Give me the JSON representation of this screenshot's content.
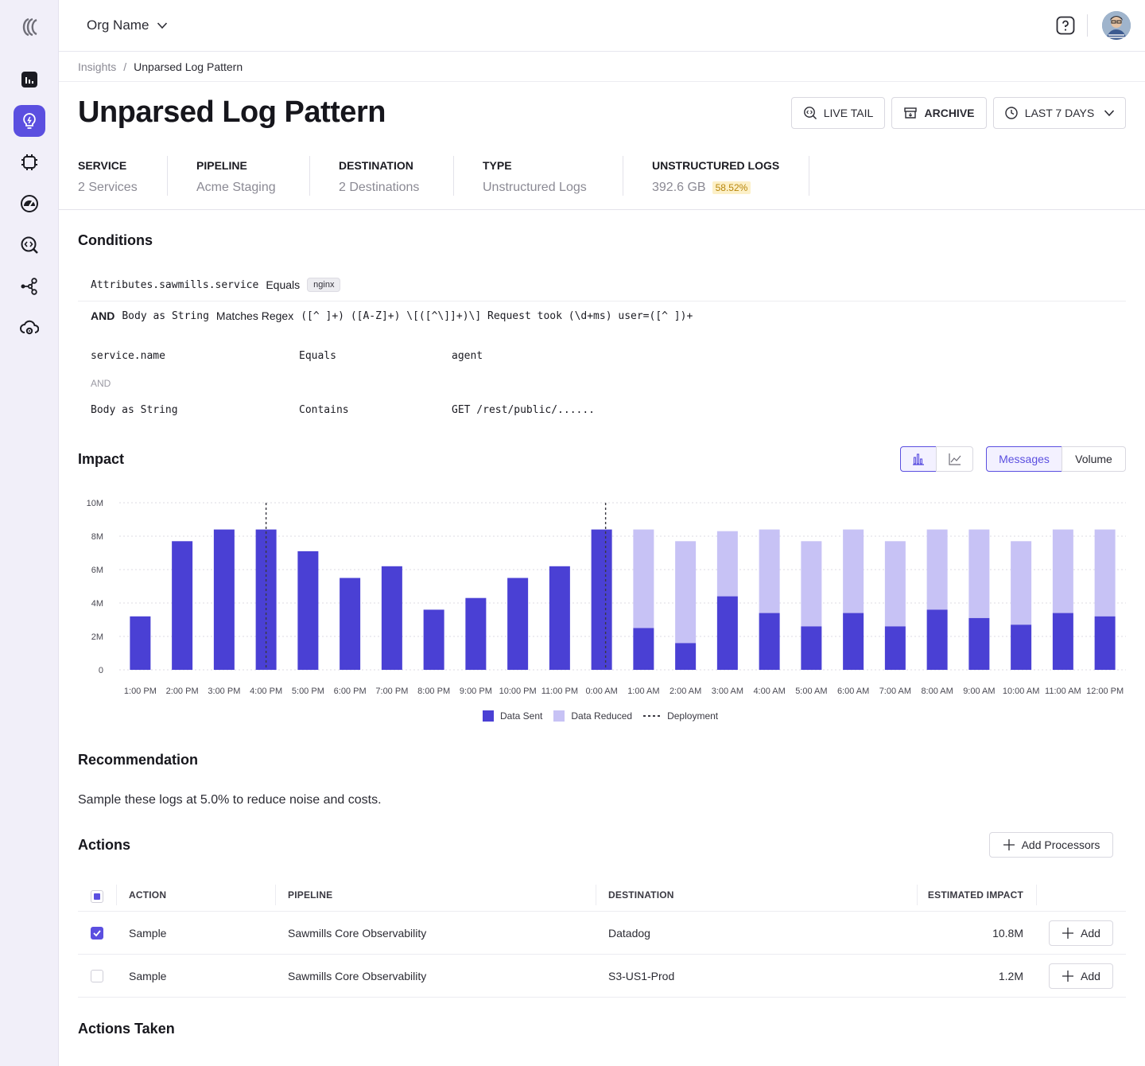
{
  "org": {
    "name": "Org Name"
  },
  "sidebar": {
    "items": [
      {
        "name": "dashboard-icon"
      },
      {
        "name": "insights-icon",
        "active": true
      },
      {
        "name": "processors-icon"
      },
      {
        "name": "gauge-icon"
      },
      {
        "name": "search-code-icon"
      },
      {
        "name": "pipelines-icon"
      },
      {
        "name": "cloud-settings-icon"
      }
    ]
  },
  "breadcrumb": {
    "parent": "Insights",
    "separator": "/",
    "current": "Unparsed Log Pattern"
  },
  "header": {
    "title": "Unparsed Log Pattern",
    "live_tail": "LIVE TAIL",
    "archive": "ARCHIVE",
    "range": "LAST 7 DAYS"
  },
  "stats": [
    {
      "label": "SERVICE",
      "value": "2 Services"
    },
    {
      "label": "PIPELINE",
      "value": "Acme Staging"
    },
    {
      "label": "DESTINATION",
      "value": "2 Destinations"
    },
    {
      "label": "TYPE",
      "value": "Unstructured Logs"
    },
    {
      "label": "UNSTRUCTURED LOGS",
      "value": "392.6 GB",
      "badge": "58.52%"
    }
  ],
  "conditions": {
    "title": "Conditions",
    "row1": {
      "field": "Attributes.sawmills.service",
      "op": "Equals",
      "value": "nginx"
    },
    "row2": {
      "and": "AND",
      "field": "Body as String",
      "op": "Matches Regex",
      "value": "([^ ]+) ([A-Z]+) \\[([^\\]]+)\\] Request took (\\d+ms) user=([^ ])+"
    },
    "grid": [
      {
        "field": "service.name",
        "op": "Equals",
        "value": "agent"
      },
      {
        "field": "Body as String",
        "op": "Contains",
        "value": "GET /rest/public/......"
      }
    ],
    "grid_and": "AND"
  },
  "impact": {
    "title": "Impact",
    "toggle": [
      "Messages",
      "Volume"
    ],
    "selected": "Messages"
  },
  "chart_data": {
    "type": "bar",
    "stacked": true,
    "categories": [
      "1:00 PM",
      "2:00 PM",
      "3:00 PM",
      "4:00 PM",
      "5:00 PM",
      "6:00 PM",
      "7:00 PM",
      "8:00 PM",
      "9:00 PM",
      "10:00 PM",
      "11:00 PM",
      "0:00 AM",
      "1:00 AM",
      "2:00 AM",
      "3:00 AM",
      "4:00 AM",
      "5:00 AM",
      "6:00 AM",
      "7:00 AM",
      "8:00 AM",
      "9:00 AM",
      "10:00 AM",
      "11:00 AM",
      "12:00 PM"
    ],
    "series": [
      {
        "name": "Data Sent",
        "color": "#4a40d4",
        "values": [
          3.2,
          7.7,
          8.4,
          8.4,
          7.1,
          5.5,
          6.2,
          3.6,
          4.3,
          5.5,
          6.2,
          8.4,
          2.5,
          1.6,
          4.4,
          3.4,
          2.6,
          3.4,
          2.6,
          3.6,
          3.1,
          2.7,
          3.4,
          3.2
        ]
      },
      {
        "name": "Data Reduced",
        "color": "#c7c2f5",
        "values": [
          0,
          0,
          0,
          0,
          0,
          0,
          0,
          0,
          0,
          0,
          0,
          0,
          5.9,
          6.1,
          3.9,
          5.0,
          5.1,
          5.0,
          5.1,
          4.8,
          5.3,
          5.0,
          5.0,
          5.2
        ]
      }
    ],
    "deployments": [
      "4:00 PM",
      "0:00 AM"
    ],
    "deployment_label": "Deployment",
    "yticks": [
      "0",
      "2M",
      "4M",
      "6M",
      "8M",
      "10M"
    ],
    "ylim": [
      0,
      10
    ],
    "unit": "M",
    "grid": true,
    "legend": "bottom-center"
  },
  "recommendation": {
    "title": "Recommendation",
    "text": "Sample these logs at 5.0% to reduce noise and costs."
  },
  "actions": {
    "title": "Actions",
    "add_processors": "Add Processors",
    "columns": [
      "ACTION",
      "PIPELINE",
      "DESTINATION",
      "ESTIMATED IMPACT"
    ],
    "rows": [
      {
        "checked": true,
        "action": "Sample",
        "pipeline": "Sawmills Core Observability",
        "destination": "Datadog",
        "impact": "10.8M",
        "button": "Add"
      },
      {
        "checked": false,
        "action": "Sample",
        "pipeline": "Sawmills Core Observability",
        "destination": "S3-US1-Prod",
        "impact": "1.2M",
        "button": "Add"
      }
    ]
  },
  "actions_taken": {
    "title": "Actions Taken"
  }
}
